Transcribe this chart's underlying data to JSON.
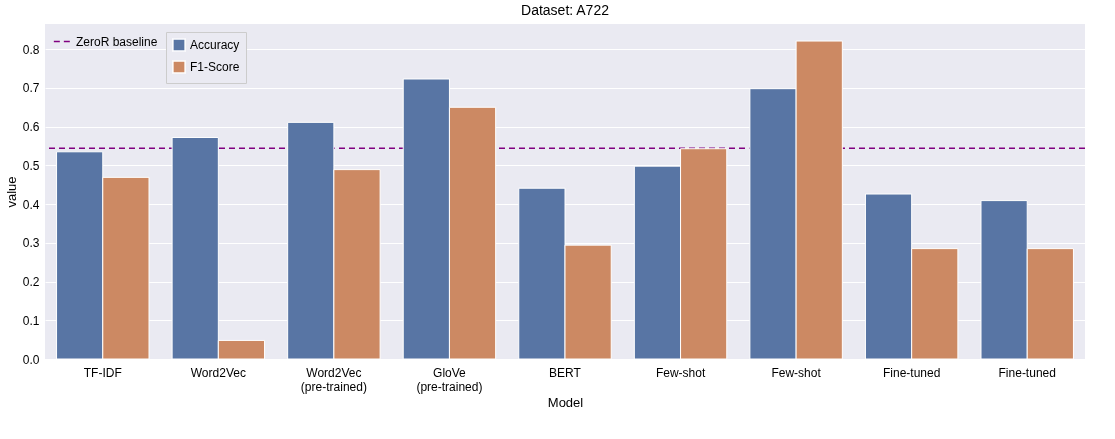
{
  "chart_data": {
    "type": "bar",
    "title": "Dataset: A722",
    "xlabel": "Model",
    "ylabel": "value",
    "categories": [
      "TF-IDF",
      "Word2Vec",
      "Word2Vec (pre-trained)",
      "GloVe (pre-trained)",
      "BERT",
      "Few-shot",
      "Few-shot",
      "Fine-tuned",
      "Fine-tuned"
    ],
    "series": [
      {
        "name": "Accuracy",
        "color": "#5875a4",
        "values": [
          0.535,
          0.572,
          0.611,
          0.723,
          0.441,
          0.498,
          0.698,
          0.426,
          0.409
        ]
      },
      {
        "name": "F1-Score",
        "color": "#cc8963",
        "values": [
          0.469,
          0.048,
          0.489,
          0.65,
          0.294,
          0.543,
          0.821,
          0.285,
          0.285
        ]
      }
    ],
    "ylim": [
      0,
      0.865
    ],
    "yticks": [
      {
        "value": 0,
        "label": "0.0"
      },
      0.1,
      0.2,
      0.3,
      0.4,
      0.5,
      0.6,
      0.7,
      0.8
    ],
    "ref_lines": [
      {
        "axis": "y",
        "value": 0.544,
        "label": "ZeroR baseline",
        "color": "#800080",
        "line_style": "dashed"
      }
    ],
    "grid": "y",
    "legend": "top left"
  }
}
